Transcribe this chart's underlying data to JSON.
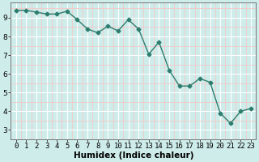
{
  "x": [
    0,
    1,
    2,
    3,
    4,
    5,
    6,
    7,
    8,
    9,
    10,
    11,
    12,
    13,
    14,
    15,
    16,
    17,
    18,
    19,
    20,
    21,
    22,
    23
  ],
  "y": [
    9.4,
    9.4,
    9.3,
    9.2,
    9.2,
    9.35,
    8.9,
    8.4,
    8.2,
    8.55,
    8.3,
    8.9,
    8.4,
    7.05,
    7.7,
    6.2,
    5.35,
    5.35,
    5.75,
    5.55,
    3.9,
    3.35,
    4.0,
    4.15
  ],
  "line_color": "#2d7d6e",
  "marker": "D",
  "marker_size": 2.5,
  "bg_color": "#ceecea",
  "grid_color_major": "#ffffff",
  "grid_color_minor": "#f5c8c8",
  "xlabel": "Humidex (Indice chaleur)",
  "xlim": [
    -0.5,
    23.5
  ],
  "ylim": [
    2.5,
    9.8
  ],
  "yticks": [
    3,
    4,
    5,
    6,
    7,
    8,
    9
  ],
  "yticks_minor": [
    3.5,
    4.5,
    5.5,
    6.5,
    7.5,
    8.5,
    9.5
  ],
  "xticks_minor": [
    0.5,
    1.5,
    2.5,
    3.5,
    4.5,
    5.5,
    6.5,
    7.5,
    8.5,
    9.5,
    10.5,
    11.5,
    12.5,
    13.5,
    14.5,
    15.5,
    16.5,
    17.5,
    18.5,
    19.5,
    20.5,
    21.5,
    22.5
  ],
  "xlabel_fontsize": 7.5,
  "tick_fontsize": 6.5,
  "linewidth": 1.0
}
